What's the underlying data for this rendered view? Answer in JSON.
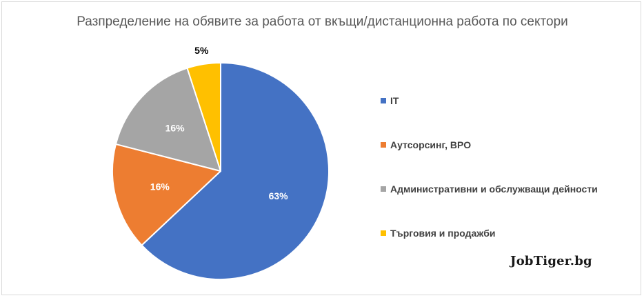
{
  "chart_data": {
    "type": "pie",
    "title": "Разпределение на обявите за работа от вкъщи/дистанционна работа по сектори",
    "categories": [
      "IT",
      "Аутсорсинг, BPO",
      "Административни и обслужващи дейности",
      "Търговия и продажби"
    ],
    "values": [
      63,
      16,
      16,
      5
    ],
    "data_labels": [
      "63%",
      "16%",
      "16%",
      "5%"
    ],
    "colors": [
      "#4472c4",
      "#ed7d31",
      "#a5a5a5",
      "#ffc000"
    ],
    "legend_position": "right",
    "start_angle_deg": 0,
    "direction": "clockwise"
  },
  "watermark": "JobTiger.bg"
}
